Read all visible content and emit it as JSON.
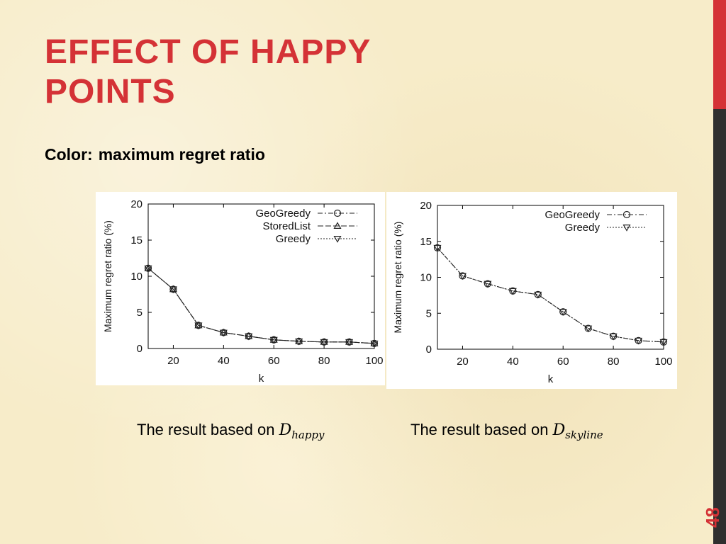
{
  "slide": {
    "title_lines": [
      "EFFECT OF HAPPY",
      "POINTS"
    ],
    "subtitle_label": "Color:",
    "subtitle_value": "maximum regret ratio",
    "page_number": "48",
    "accent_color": "#d43236",
    "dark_bar_color": "#2f2f2f"
  },
  "captions": [
    {
      "text": "The result based on ",
      "math_base": "D",
      "math_sub": "happy"
    },
    {
      "text": "The result based on ",
      "math_base": "D",
      "math_sub": "skyline"
    }
  ],
  "chart_data": [
    {
      "type": "line",
      "xlabel": "k",
      "ylabel": "Maximum regret ratio (%)",
      "xlim": [
        10,
        100
      ],
      "ylim": [
        0,
        20
      ],
      "xticks": [
        20,
        40,
        60,
        80,
        100
      ],
      "yticks": [
        0,
        5,
        10,
        15,
        20
      ],
      "grid": false,
      "legend_position": "top-right",
      "x": [
        10,
        20,
        30,
        40,
        50,
        60,
        70,
        80,
        90,
        100
      ],
      "series": [
        {
          "name": "GeoGreedy",
          "marker": "circle",
          "line_style": "dash-dot",
          "values": [
            11.1,
            8.2,
            3.2,
            2.2,
            1.7,
            1.2,
            1.0,
            0.9,
            0.9,
            0.7
          ]
        },
        {
          "name": "StoredList",
          "marker": "triangle-up",
          "line_style": "long-dash",
          "values": [
            11.1,
            8.2,
            3.2,
            2.2,
            1.7,
            1.2,
            1.0,
            0.9,
            0.9,
            0.7
          ]
        },
        {
          "name": "Greedy",
          "marker": "triangle-down",
          "line_style": "dotted",
          "values": [
            11.1,
            8.2,
            3.2,
            2.2,
            1.7,
            1.2,
            1.0,
            0.9,
            0.9,
            0.7
          ]
        }
      ]
    },
    {
      "type": "line",
      "xlabel": "k",
      "ylabel": "Maximum regret ratio (%)",
      "xlim": [
        10,
        100
      ],
      "ylim": [
        0,
        20
      ],
      "xticks": [
        20,
        40,
        60,
        80,
        100
      ],
      "yticks": [
        0,
        5,
        10,
        15,
        20
      ],
      "grid": false,
      "legend_position": "top-right",
      "x": [
        10,
        20,
        30,
        40,
        50,
        60,
        70,
        80,
        90,
        100
      ],
      "series": [
        {
          "name": "GeoGreedy",
          "marker": "circle",
          "line_style": "dash-dot",
          "values": [
            14.1,
            10.2,
            9.1,
            8.1,
            7.6,
            5.2,
            2.9,
            1.8,
            1.2,
            1.0
          ]
        },
        {
          "name": "Greedy",
          "marker": "triangle-down",
          "line_style": "dotted",
          "values": [
            14.1,
            10.2,
            9.1,
            8.1,
            7.6,
            5.2,
            2.9,
            1.8,
            1.2,
            1.0
          ]
        }
      ]
    }
  ]
}
